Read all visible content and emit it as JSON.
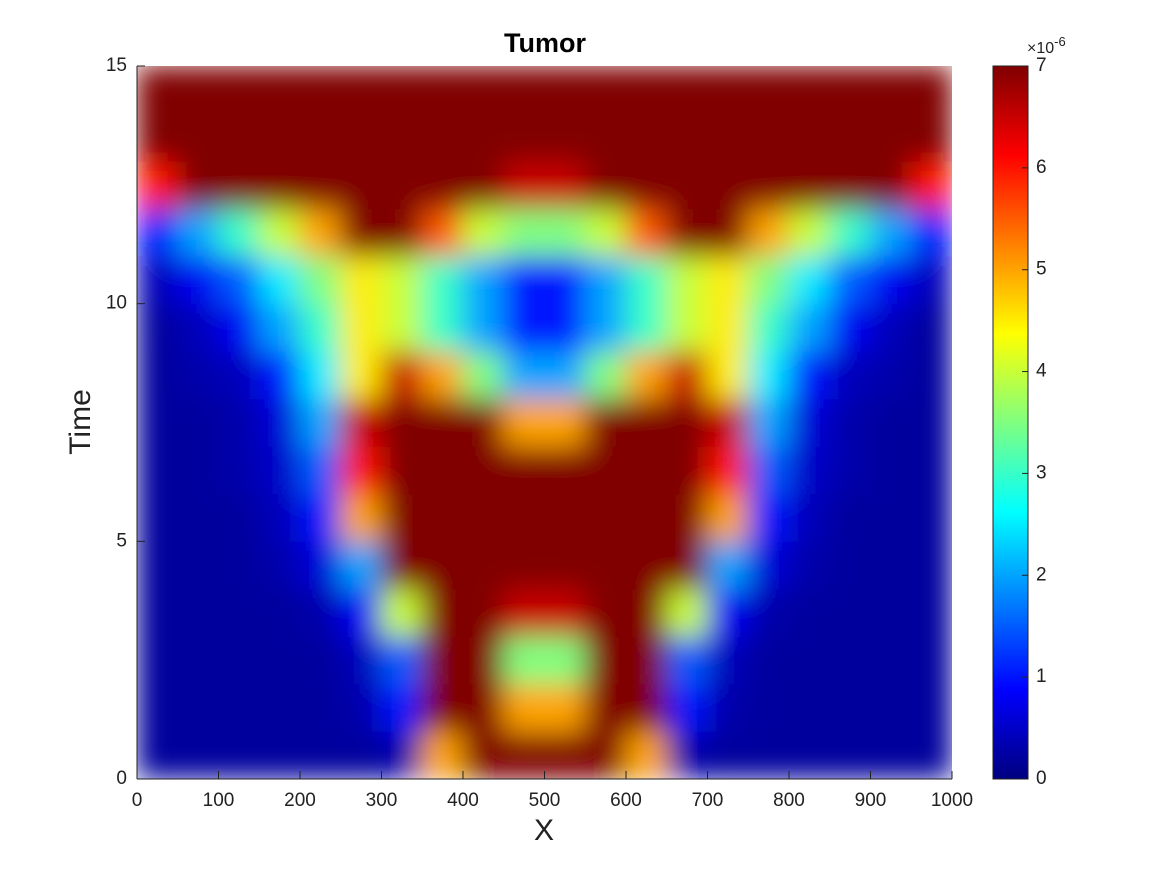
{
  "chart_data": {
    "type": "heatmap",
    "title": "Tumor",
    "x_label": "X",
    "y_label": "Time",
    "colormap": "jet",
    "x": [
      25,
      75,
      125,
      175,
      225,
      275,
      325,
      375,
      425,
      475,
      525,
      575,
      625,
      675,
      725,
      775,
      825,
      875,
      925,
      975
    ],
    "y": [
      0.5,
      1.5,
      2.5,
      3.5,
      4.5,
      5.5,
      6.5,
      7.5,
      8.5,
      9.5,
      10.5,
      11.5,
      12.5,
      13.5,
      14.5
    ],
    "values": [
      [
        0.2,
        0.2,
        0.2,
        0.2,
        0.2,
        0.2,
        0.3,
        5,
        7,
        7,
        7,
        7,
        5,
        0.3,
        0.2,
        0.2,
        0.2,
        0.2,
        0.2,
        0.2
      ],
      [
        0.2,
        0.2,
        0.2,
        0.2,
        0.2,
        0.3,
        1,
        7,
        7,
        5,
        5,
        7,
        7,
        1,
        0.3,
        0.2,
        0.2,
        0.2,
        0.2,
        0.2
      ],
      [
        0.2,
        0.2,
        0.2,
        0.2,
        0.2,
        0.4,
        1.5,
        7,
        7,
        3.5,
        3.5,
        7,
        7,
        1.5,
        0.4,
        0.2,
        0.2,
        0.2,
        0.2,
        0.2
      ],
      [
        0.2,
        0.2,
        0.2,
        0.2,
        0.3,
        0.8,
        4,
        7,
        7,
        6.5,
        6.5,
        7,
        7,
        4,
        0.8,
        0.3,
        0.2,
        0.2,
        0.2,
        0.2
      ],
      [
        0.2,
        0.2,
        0.2,
        0.3,
        0.6,
        2,
        7,
        7,
        7,
        7,
        7,
        7,
        7,
        7,
        2,
        0.6,
        0.3,
        0.2,
        0.2,
        0.2
      ],
      [
        0.2,
        0.2,
        0.2,
        0.4,
        1,
        5,
        7,
        7,
        7,
        7,
        7,
        7,
        7,
        7,
        5,
        1,
        0.4,
        0.2,
        0.2,
        0.2
      ],
      [
        0.2,
        0.2,
        0.3,
        0.5,
        1.5,
        6,
        7,
        7,
        7,
        7,
        7,
        7,
        7,
        7,
        6,
        1.5,
        0.5,
        0.3,
        0.2,
        0.2
      ],
      [
        0.2,
        0.2,
        0.3,
        0.6,
        2,
        6.5,
        7,
        7,
        7,
        5,
        5,
        7,
        7,
        7,
        6.5,
        2,
        0.6,
        0.3,
        0.2,
        0.2
      ],
      [
        0.2,
        0.3,
        0.4,
        1,
        2.5,
        4.5,
        6.5,
        5,
        3.5,
        2,
        2,
        3.5,
        5,
        6.5,
        4.5,
        2.5,
        1,
        0.4,
        0.3,
        0.2
      ],
      [
        0.2,
        0.4,
        0.8,
        2,
        3,
        4.5,
        4,
        3,
        2,
        1,
        1,
        2,
        3,
        4,
        4.5,
        3,
        2,
        0.8,
        0.4,
        0.2
      ],
      [
        0.4,
        0.8,
        1.5,
        2.5,
        3.5,
        4.5,
        4,
        3,
        2,
        1,
        1,
        2,
        3,
        4,
        4.5,
        3.5,
        2.5,
        1.5,
        0.8,
        0.4
      ],
      [
        1,
        2,
        3,
        4,
        5,
        7,
        7,
        5.5,
        4,
        3.5,
        3.5,
        4,
        5.5,
        7,
        7,
        5,
        4,
        3,
        2,
        1
      ],
      [
        6,
        7,
        7,
        7,
        7,
        7,
        7,
        7,
        7,
        6.5,
        6.5,
        7,
        7,
        7,
        7,
        7,
        7,
        7,
        7,
        6
      ],
      [
        7,
        7,
        7,
        7,
        7,
        7,
        7,
        7,
        7,
        7,
        7,
        7,
        7,
        7,
        7,
        7,
        7,
        7,
        7,
        7
      ],
      [
        7,
        7,
        7,
        7,
        7,
        7,
        7,
        7,
        7,
        7,
        7,
        7,
        7,
        7,
        7,
        7,
        7,
        7,
        7,
        7
      ]
    ],
    "xlim": [
      0,
      1000
    ],
    "xticks": [
      0,
      100,
      200,
      300,
      400,
      500,
      600,
      700,
      800,
      900,
      1000
    ],
    "ylim": [
      0,
      15
    ],
    "yticks": [
      0,
      5,
      10,
      15
    ],
    "colorbar": {
      "lim": [
        0,
        7
      ],
      "ticks": [
        0,
        1,
        2,
        3,
        4,
        5,
        6,
        7
      ],
      "multiplier": "×10",
      "exponent": "-6"
    }
  }
}
